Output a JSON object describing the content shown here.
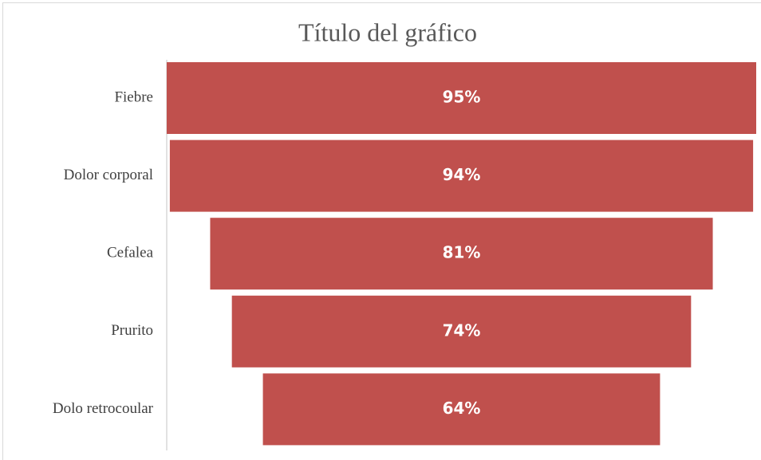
{
  "chart_data": {
    "type": "funnel",
    "title": "Título del gráfico",
    "categories": [
      "Fiebre",
      "Dolor corporal",
      "Cefalea",
      "Prurito",
      "Dolo retrocoular"
    ],
    "values": [
      95,
      94,
      81,
      74,
      64
    ],
    "value_labels": [
      "95%",
      "94%",
      "81%",
      "74%",
      "64%"
    ],
    "color": "#c0504d"
  }
}
